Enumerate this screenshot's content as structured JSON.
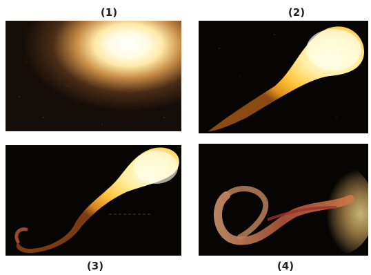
{
  "panels": [
    {
      "label": "(1)"
    },
    {
      "label": "(2)"
    },
    {
      "label": "(3)"
    },
    {
      "label": "(4)"
    }
  ],
  "colors": {
    "background": "#ffffff",
    "panel_dark": "#070503",
    "flame_core": "#fffde8",
    "flame_mid": "#ffd24a",
    "flame_outer": "#e08a1c",
    "tail": "#a0452a"
  }
}
